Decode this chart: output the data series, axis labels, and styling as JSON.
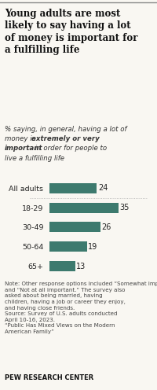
{
  "title": "Young adults are most\nlikely to say having a lot\nof money is important for\na fulfilling life",
  "categories": [
    "All adults",
    "18-29",
    "30-49",
    "50-64",
    "65+"
  ],
  "values": [
    24,
    35,
    26,
    19,
    13
  ],
  "bar_color": "#3d7a6e",
  "value_color": "#222222",
  "xlim": [
    0,
    42
  ],
  "note": "Note: Other response options included “Somewhat important,” “Not too important”\nand “Not at all important.” The survey also\nasked about being married, having\nchildren, having a job or career they enjoy,\nand having close friends.\nSource: Survey of U.S. adults conducted\nApril 10-16, 2023.\n“Public Has Mixed Views on the Modern\nAmerican Family”",
  "footer": "PEW RESEARCH CENTER",
  "bg_color": "#f9f7f2"
}
